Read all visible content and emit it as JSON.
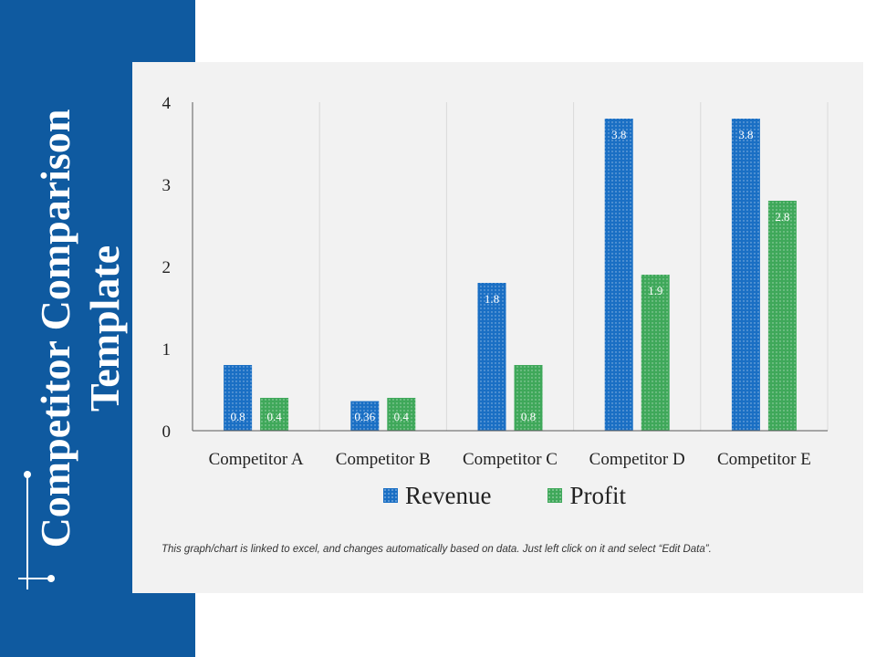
{
  "slide": {
    "title_line1": "Competitor Comparison",
    "title_line2": "Template",
    "footnote": "This graph/chart is linked to excel,  and changes automatically based on data. Just left click on it and select “Edit Data”.",
    "colors": {
      "band": "#0f5aa0",
      "panel": "#f2f2f2"
    }
  },
  "chart_data": {
    "type": "bar",
    "categories": [
      "Competitor A",
      "Competitor B",
      "Competitor C",
      "Competitor D",
      "Competitor E"
    ],
    "series": [
      {
        "name": "Revenue",
        "values": [
          0.8,
          0.36,
          1.8,
          3.8,
          3.8
        ],
        "color": "#1a6fc4"
      },
      {
        "name": "Profit",
        "values": [
          0.4,
          0.4,
          0.8,
          1.9,
          2.8
        ],
        "color": "#3fa85a"
      }
    ],
    "y_ticks": [
      "0",
      "1",
      "2",
      "3",
      "4"
    ],
    "ylim": [
      0,
      4
    ],
    "grid": "vertical",
    "legend": "bottom",
    "title": "",
    "xlabel": "",
    "ylabel": ""
  }
}
